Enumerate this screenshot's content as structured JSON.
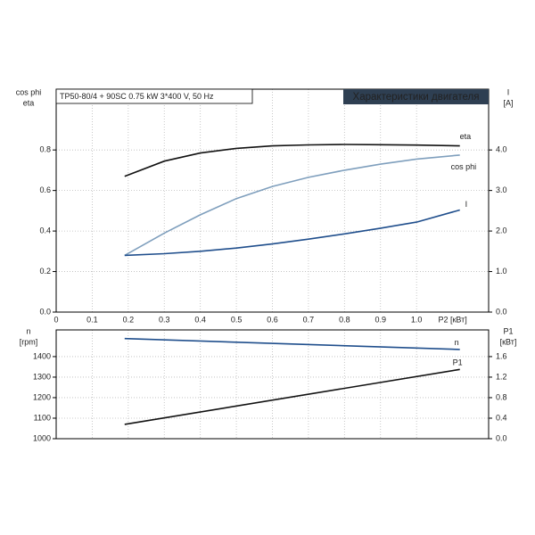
{
  "chart_data": [
    {
      "type": "line",
      "title": "TP50-80/4 + 90SC  0.75 kW  3*400 V, 50 Hz",
      "subtitle": "Характеристики двигателя",
      "ylabel": [
        "cos phi",
        "eta"
      ],
      "y2label": [
        "I",
        "[A]"
      ],
      "xlabel": "P2 [кВт]",
      "xlim": [
        0,
        1.2
      ],
      "xticks": [
        0,
        0.1,
        0.2,
        0.3,
        0.4,
        0.5,
        0.6,
        0.7,
        0.8,
        0.9,
        {
          "value": 1.0,
          "label": "1.0"
        }
      ],
      "ylim": [
        0,
        1.1
      ],
      "yticks": [
        {
          "value": 0,
          "label": "0.0"
        },
        0.2,
        0.4,
        0.6,
        0.8
      ],
      "y2lim": [
        0,
        5.5
      ],
      "y2ticks": [
        {
          "value": 0,
          "label": "0.0"
        },
        {
          "value": 1,
          "label": "1.0"
        },
        {
          "value": 2,
          "label": "2.0"
        },
        {
          "value": 3,
          "label": "3.0"
        },
        {
          "value": 4,
          "label": "4.0"
        }
      ],
      "grid": true,
      "x": [
        0.19,
        0.3,
        0.4,
        0.5,
        0.6,
        0.7,
        0.8,
        0.9,
        1.0,
        1.12
      ],
      "series": [
        {
          "name": "eta",
          "color": "#111111",
          "values": [
            0.67,
            0.745,
            0.785,
            0.808,
            0.82,
            0.825,
            0.827,
            0.826,
            0.824,
            0.82
          ]
        },
        {
          "name": "cos phi",
          "color": "#7f9fbd",
          "values": [
            0.28,
            0.39,
            0.48,
            0.56,
            0.62,
            0.665,
            0.7,
            0.73,
            0.755,
            0.775
          ]
        },
        {
          "name": "I",
          "color": "#1f4e8c",
          "axis": "y2",
          "values": [
            1.4,
            1.44,
            1.5,
            1.58,
            1.68,
            1.8,
            1.93,
            2.07,
            2.22,
            2.52
          ]
        }
      ]
    },
    {
      "type": "line",
      "ylabel": [
        "n",
        "[rpm]"
      ],
      "y2label": [
        "P1",
        "[кВт]"
      ],
      "xlim": [
        0,
        1.2
      ],
      "xticks": [
        0,
        0.1,
        0.2,
        0.3,
        0.4,
        0.5,
        0.6,
        0.7,
        0.8,
        0.9,
        1.0
      ],
      "ylim": [
        1000,
        1530
      ],
      "yticks": [
        1000,
        1100,
        1200,
        1300,
        1400
      ],
      "y2lim": [
        0,
        2.12
      ],
      "y2ticks": [
        {
          "value": 0,
          "label": "0.0"
        },
        0.4,
        0.8,
        1.2,
        1.6
      ],
      "grid": true,
      "x": [
        0.19,
        1.12
      ],
      "series": [
        {
          "name": "n",
          "color": "#1f4e8c",
          "values": [
            1488,
            1435
          ]
        },
        {
          "name": "P1",
          "color": "#111111",
          "axis": "y2",
          "values": [
            0.28,
            1.35
          ]
        }
      ]
    }
  ]
}
